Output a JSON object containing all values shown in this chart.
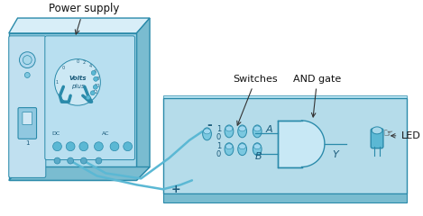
{
  "bg_color": "#ffffff",
  "light_blue": "#a8d8ea",
  "mid_blue": "#5bb8d4",
  "dark_blue": "#2a8aaa",
  "pale_blue": "#cce8f5",
  "very_pale": "#dff0f8",
  "side_blue": "#7abcd0",
  "labels": {
    "power_supply": "Power supply",
    "switches": "Switches",
    "and_gate": "AND gate",
    "led": "LED",
    "a": "A",
    "b": "B",
    "y": "Y",
    "plus": "+",
    "minus": "-",
    "dc": "DC",
    "ac": "AC",
    "volts": "Volts",
    "plus_txt": "plus"
  }
}
